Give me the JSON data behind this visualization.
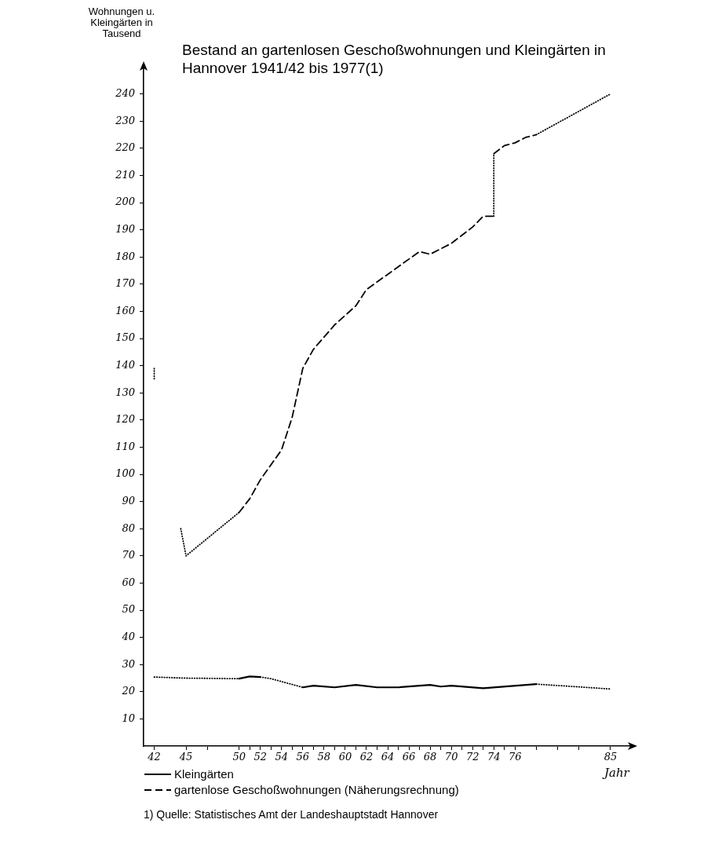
{
  "chart_data": {
    "type": "line",
    "title": "Bestand an gartenlosen Geschoßwohnungen und Kleingärten in Hannover 1941/42 bis 1977(1)",
    "xlabel": "Jahr",
    "ylabel": "Wohnungen u. Kleingärten in Tausend",
    "series": [
      {
        "name": "Kleingärten",
        "color": "#000000",
        "x": [
          42,
          45,
          50,
          51,
          52,
          53,
          56,
          57,
          59,
          61,
          63,
          65,
          68,
          69,
          70,
          73,
          78,
          85
        ],
        "values": [
          25.4,
          25,
          24.8,
          25.6,
          25.4,
          24.8,
          21.6,
          22.2,
          21.6,
          22.5,
          21.6,
          21.6,
          22.5,
          21.9,
          22.2,
          21.3,
          22.8,
          21
        ],
        "line_style": [
          "dotted",
          "dotted",
          "solid",
          "solid",
          "dotted",
          "dotted",
          "solid",
          "solid",
          "solid",
          "solid",
          "solid",
          "solid",
          "solid",
          "solid",
          "solid",
          "solid",
          "dotted"
        ]
      },
      {
        "name": "gartenlose Geschoßwohnungen (Näherungsrechnung)",
        "color": "#000000",
        "x": [
          44.5,
          45,
          50,
          51,
          52,
          54,
          55,
          56,
          57,
          59,
          61,
          62,
          67,
          68,
          70,
          72,
          73,
          74,
          74,
          75,
          76,
          77,
          78,
          85
        ],
        "values": [
          80,
          70,
          86,
          91,
          98,
          109,
          121,
          139,
          146,
          155,
          162,
          168,
          182,
          181,
          185,
          191,
          195,
          195,
          218,
          221,
          222,
          224,
          225,
          240
        ],
        "line_style": [
          "dotted",
          "dotted",
          "dashed",
          "dashed",
          "dashed",
          "dashed",
          "dashed",
          "dashed",
          "dashed",
          "dashed",
          "dashed",
          "dashed",
          "dashed",
          "dashed",
          "dashed",
          "dashed",
          "dashed",
          "dotted",
          "dashed",
          "dashed",
          "dashed",
          "dashed",
          "dotted"
        ]
      },
      {
        "color": "#000000",
        "line_style": "dotted",
        "x": [
          42,
          42
        ],
        "values": [
          139,
          135
        ]
      }
    ],
    "xlim": [
      41,
      87
    ],
    "xticks": [
      42,
      45,
      {
        "value": 47,
        "label": null
      },
      50,
      {
        "value": 51,
        "label": null
      },
      52,
      {
        "value": 53,
        "label": null
      },
      54,
      {
        "value": 55,
        "label": null
      },
      56,
      {
        "value": 57,
        "label": null
      },
      58,
      {
        "value": 59,
        "label": null
      },
      60,
      {
        "value": 61,
        "label": null
      },
      62,
      {
        "value": 63,
        "label": null
      },
      64,
      {
        "value": 65,
        "label": null
      },
      66,
      {
        "value": 67,
        "label": null
      },
      68,
      {
        "value": 69,
        "label": null
      },
      70,
      {
        "value": 71,
        "label": null
      },
      72,
      {
        "value": 73,
        "label": null
      },
      74,
      {
        "value": 75,
        "label": null
      },
      76,
      {
        "value": 78,
        "label": null
      },
      {
        "value": 80,
        "label": null
      },
      {
        "value": 82,
        "label": null
      },
      85
    ],
    "ylim": [
      0,
      250
    ],
    "yticks": [
      10,
      20,
      30,
      40,
      50,
      60,
      70,
      80,
      90,
      100,
      110,
      120,
      130,
      140,
      150,
      160,
      170,
      180,
      190,
      200,
      210,
      220,
      230,
      240
    ],
    "grid": false,
    "legend": "bottom",
    "marker": "none",
    "annotations": [
      "1) Quelle: Statistisches Amt der Landeshauptstadt Hannover"
    ]
  }
}
